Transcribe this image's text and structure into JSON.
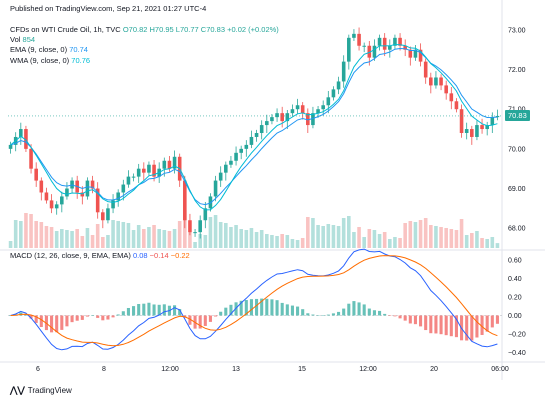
{
  "header": {
    "published": "Published on TradingView.com, Sep 21, 2021 01:27 UTC-4",
    "symbol": "CFDs on WTI Crude Oil, 1h, TVC",
    "ohlc": "O70.82 H70.95 L70.77 C70.83 +0.02 (+0.02%)",
    "vol_label": "Vol",
    "vol_value": "854",
    "ema_label": "EMA (9, close, 0)",
    "ema_value": "70.74",
    "wma_label": "WMA (9, close, 0)",
    "wma_value": "70.76",
    "macd_label": "MACD (12, 26, close, 9, EMA, EMA)",
    "macd_v1": "0.08",
    "macd_v2": "−0.14",
    "macd_v3": "−0.22"
  },
  "last_price_tag": "70.83",
  "brand": "TradingView",
  "colors": {
    "up": "#26a69a",
    "down": "#ef5350",
    "ema": "#2196f3",
    "wma": "#00bcd4",
    "macd": "#2962ff",
    "signal": "#ff6d00",
    "axis": "#131722"
  },
  "chart_data": [
    {
      "type": "candlestick",
      "title": "CFDs on WTI Crude Oil, 1h, TVC",
      "x_tick_labels": [
        "6",
        "8",
        "12:00",
        "13",
        "15",
        "12:00",
        "20",
        "06:00"
      ],
      "y_tick_labels": [
        "68.00",
        "69.00",
        "70.00",
        "71.00",
        "72.00",
        "73.00"
      ],
      "ylim": [
        67.5,
        73.3
      ],
      "close": [
        70.1,
        70.3,
        70.5,
        70.0,
        69.5,
        69.2,
        68.9,
        68.7,
        68.5,
        68.6,
        68.8,
        69.0,
        69.2,
        68.9,
        68.8,
        69.2,
        69.0,
        68.4,
        68.2,
        68.5,
        68.7,
        68.9,
        69.1,
        69.3,
        69.3,
        69.5,
        69.4,
        69.6,
        69.3,
        69.5,
        69.7,
        69.5,
        69.8,
        69.2,
        68.2,
        67.9,
        67.9,
        68.2,
        68.5,
        68.8,
        69.2,
        69.4,
        69.6,
        69.7,
        69.9,
        70.0,
        70.1,
        70.3,
        70.4,
        70.6,
        70.7,
        70.8,
        70.9,
        70.7,
        70.9,
        71.0,
        71.1,
        70.9,
        70.6,
        70.9,
        71.0,
        71.1,
        71.3,
        71.5,
        71.7,
        72.2,
        72.8,
        72.9,
        72.6,
        72.6,
        72.3,
        72.6,
        72.8,
        72.5,
        72.6,
        72.8,
        72.6,
        72.5,
        72.3,
        72.5,
        72.2,
        71.8,
        71.6,
        71.8,
        71.6,
        71.4,
        71.2,
        71.0,
        70.4,
        70.5,
        70.3,
        70.6,
        70.5,
        70.6,
        70.8,
        70.83
      ],
      "ema_label": "EMA (9, close, 0)",
      "ema_last": 70.74,
      "wma_label": "WMA (9, close, 0)",
      "wma_last": 70.76,
      "last_price": 70.83,
      "volume_label": "Vol",
      "volume_last": 854
    },
    {
      "type": "line",
      "title": "MACD (12, 26, close, 9, EMA, EMA)",
      "y_tick_labels": [
        "0.60",
        "0.40",
        "0.20",
        "0.00",
        "−0.20",
        "−0.40"
      ],
      "ylim": [
        -0.48,
        0.62
      ],
      "series": [
        {
          "name": "MACD",
          "last": 0.08
        },
        {
          "name": "Signal",
          "last": -0.22
        },
        {
          "name": "Histogram",
          "last": -0.14
        }
      ]
    }
  ]
}
